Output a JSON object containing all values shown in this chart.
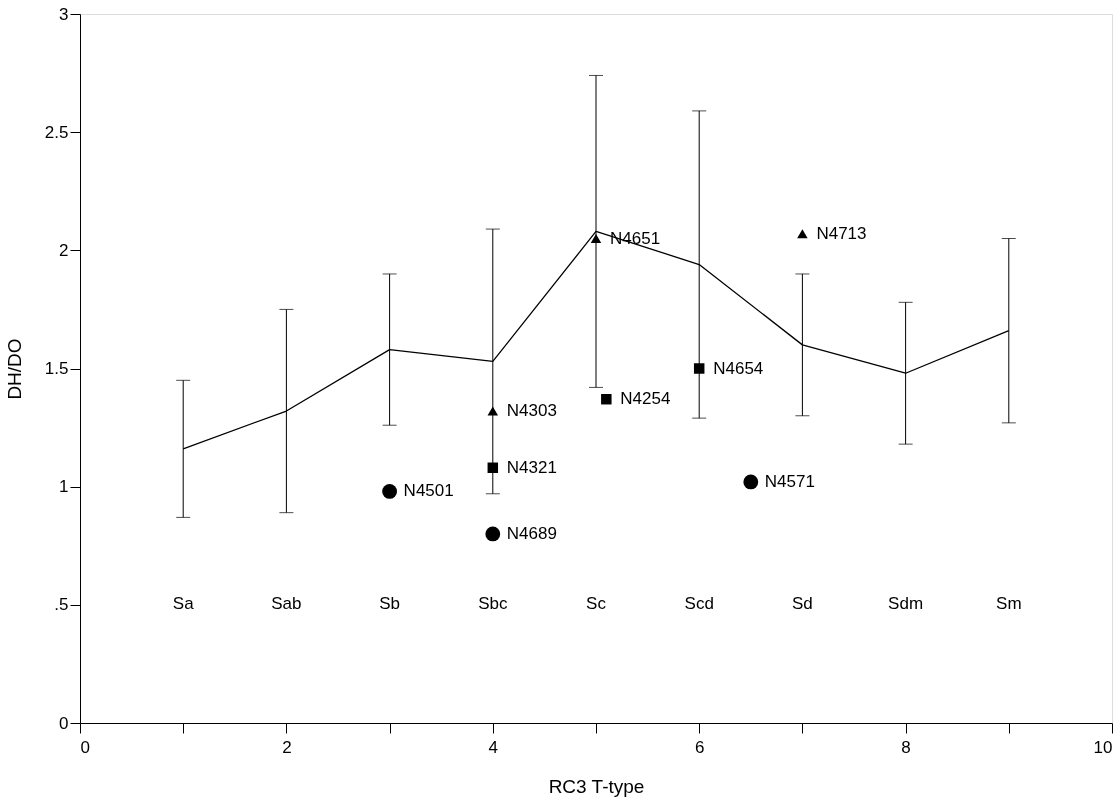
{
  "chart_data": {
    "type": "line",
    "xlabel": "RC3 T-type",
    "ylabel": "DH/DO",
    "xlim": [
      0,
      10
    ],
    "ylim": [
      0,
      3
    ],
    "xticks": [
      0,
      {
        "value": 1,
        "label": null
      },
      2,
      {
        "value": 3,
        "label": null
      },
      4,
      {
        "value": 5,
        "label": null
      },
      6,
      {
        "value": 7,
        "label": null
      },
      8,
      {
        "value": 9,
        "label": null
      },
      10
    ],
    "yticks": [
      0,
      {
        "value": 0.5,
        "label": ".5"
      },
      1,
      1.5,
      2,
      2.5,
      3
    ],
    "grid": false,
    "series": [
      {
        "color": "#000000",
        "marker": "none",
        "x": [
          1,
          2,
          3,
          4,
          5,
          6,
          7,
          8,
          9
        ],
        "values": [
          1.16,
          1.32,
          1.58,
          1.53,
          2.08,
          1.94,
          1.6,
          1.48,
          1.66
        ],
        "errors": [
          [
            0.87,
            1.45
          ],
          [
            0.89,
            1.75
          ],
          [
            1.26,
            1.9
          ],
          [
            0.97,
            2.09
          ],
          [
            1.42,
            2.74
          ],
          [
            1.29,
            2.59
          ],
          [
            1.3,
            1.9
          ],
          [
            1.18,
            1.78
          ],
          [
            1.27,
            2.05
          ]
        ]
      },
      {
        "type": "scatter",
        "color": "#000000",
        "marker": "circle",
        "x": [
          3,
          4,
          6.5
        ],
        "values": [
          0.98,
          0.8,
          1.02
        ]
      },
      {
        "type": "scatter",
        "color": "#000000",
        "marker": "square",
        "x": [
          4,
          5.1,
          6
        ],
        "values": [
          1.08,
          1.37,
          1.5
        ]
      },
      {
        "type": "scatter",
        "color": "#000000",
        "marker": "triangle",
        "x": [
          4,
          5,
          7
        ],
        "values": [
          1.32,
          2.05,
          2.07
        ]
      }
    ],
    "annotations": [
      {
        "text": "N4501",
        "x": 3,
        "y": 0.98
      },
      {
        "text": "N4689",
        "x": 4,
        "y": 0.8
      },
      {
        "text": "N4571",
        "x": 6.5,
        "y": 1.02
      },
      {
        "text": "N4321",
        "x": 4,
        "y": 1.08
      },
      {
        "text": "N4254",
        "x": 5.1,
        "y": 1.37
      },
      {
        "text": "N4654",
        "x": 6,
        "y": 1.5
      },
      {
        "text": "N4303",
        "x": 4,
        "y": 1.32
      },
      {
        "text": "N4651",
        "x": 5,
        "y": 2.05
      },
      {
        "text": "N4713",
        "x": 7,
        "y": 2.07
      },
      "Sa",
      "Sab",
      "Sb",
      "Sbc",
      "Sc",
      "Scd",
      "Sd",
      "Sdm",
      "Sm"
    ]
  }
}
